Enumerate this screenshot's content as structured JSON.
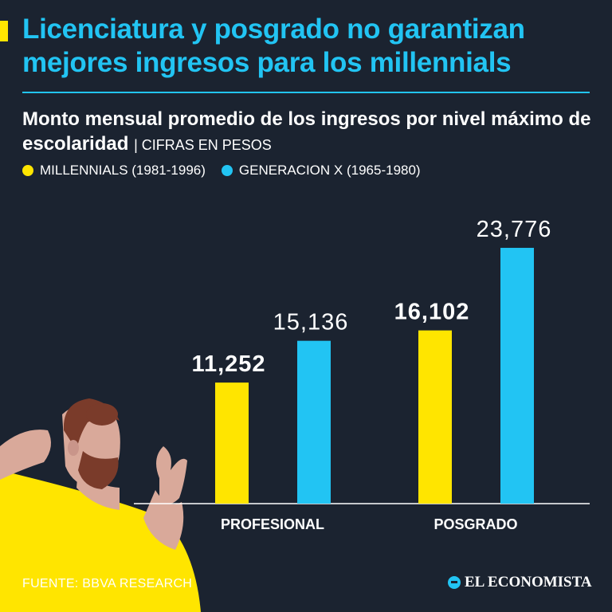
{
  "header": {
    "title": "Licenciatura y posgrado no garantizan mejores ingresos para los millennials",
    "subtitle": "Monto mensual promedio de los ingresos por nivel máximo de escolaridad",
    "unit_note": "| CIFRAS EN PESOS"
  },
  "colors": {
    "background": "#1b2330",
    "accent_blue": "#22c4f3",
    "accent_yellow": "#ffe500"
  },
  "chart_data": {
    "type": "bar",
    "categories": [
      "PROFESIONAL",
      "POSGRADO"
    ],
    "series": [
      {
        "name": "MILLENNIALS (1981-1996)",
        "values": [
          11252,
          16102
        ],
        "labels": [
          "11,252",
          "16,102"
        ],
        "color": "#ffe500"
      },
      {
        "name": "GENERACION X (1965-1980)",
        "values": [
          15136,
          23776
        ],
        "labels": [
          "15,136",
          "23,776"
        ],
        "color": "#22c4f3"
      }
    ],
    "ylim": [
      0,
      24000
    ],
    "grid": false,
    "legend": "top-left"
  },
  "footer": {
    "source": "FUENTE: BBVA RESEARCH",
    "brand": "EL ECONOMISTA"
  },
  "icons": {
    "illustration": "frustrated-man-illustration",
    "brand_mark": "el-economista-logo-icon"
  }
}
